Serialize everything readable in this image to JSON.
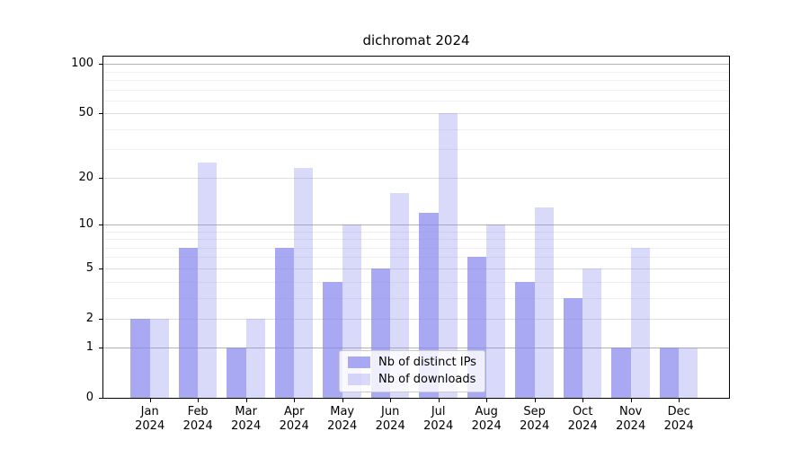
{
  "title": "dichromat 2024",
  "chart_data": {
    "type": "bar",
    "title": "dichromat 2024",
    "x_categories": [
      "Jan",
      "Feb",
      "Mar",
      "Apr",
      "May",
      "Jun",
      "Jul",
      "Aug",
      "Sep",
      "Oct",
      "Nov",
      "Dec"
    ],
    "x_year_label": "2024",
    "series": [
      {
        "name": "Nb of distinct IPs",
        "color": "rgba(136,136,238,0.72)",
        "values": [
          2,
          7,
          1,
          7,
          4,
          5,
          12,
          6,
          4,
          3,
          1,
          1
        ]
      },
      {
        "name": "Nb of downloads",
        "color": "rgba(136,136,238,0.32)",
        "values": [
          2,
          25,
          2,
          23,
          10,
          16,
          50,
          10,
          13,
          5,
          7,
          1
        ]
      }
    ],
    "yscale": "log10(1+x)",
    "y_ticks": [
      0,
      1,
      2,
      5,
      10,
      20,
      50,
      100
    ],
    "y_major_grid": [
      1,
      10,
      100
    ],
    "y_mid_grid": [
      2,
      5,
      20,
      50
    ],
    "y_minor_grid": [
      3,
      4,
      6,
      7,
      8,
      9,
      30,
      40,
      60,
      70,
      80,
      90
    ],
    "ylim": [
      0,
      115
    ],
    "grid": true,
    "legend_position": "lower center"
  },
  "colors": {
    "background": "#ffffff",
    "axis": "#000000",
    "grid_major": "#b2b2b2",
    "grid_mid": "#dedede",
    "grid_minor": "#efefef",
    "bar_base": "#8888ee"
  }
}
